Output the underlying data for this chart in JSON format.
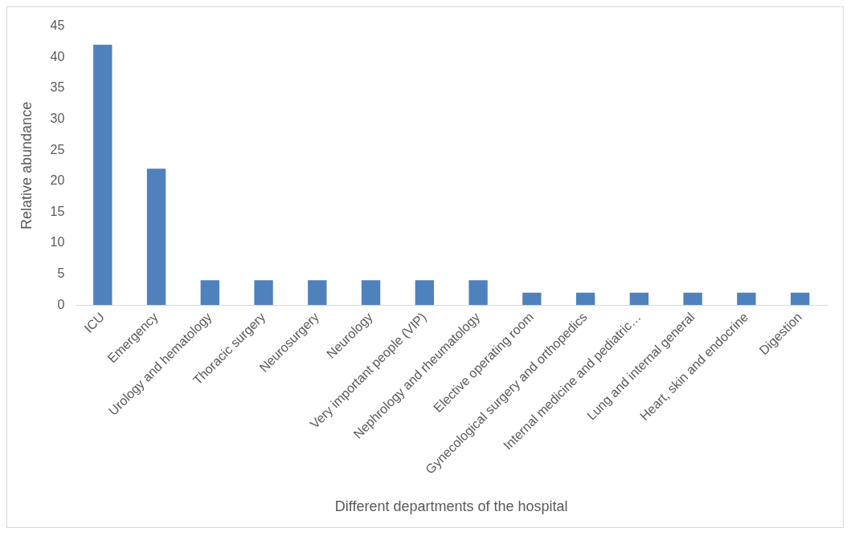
{
  "chart_data": {
    "type": "bar",
    "xlabel": "Different departments of the hospital",
    "ylabel": "Relative abundance",
    "categories": [
      "ICU",
      "Emergency",
      "Urology and hematology",
      "Thoracic surgery",
      "Neurosurgery",
      "Neurology",
      "Very important people (VIP)",
      "Nephrology and rheumatology",
      "Elective operating room",
      "Gynecological surgery and orthopedics",
      "Internal medicine and pediatric…",
      "Lung and internal general",
      "Heart, skin and endocrine",
      "Digestion"
    ],
    "values": [
      42,
      22,
      4,
      4,
      4,
      4,
      4,
      4,
      2,
      2,
      2,
      2,
      2,
      2
    ],
    "color": "#4f81bd",
    "ylim": [
      0,
      45
    ],
    "yticks": [
      0,
      5,
      10,
      15,
      20,
      25,
      30,
      35,
      40,
      45
    ],
    "grid": false,
    "legend": false
  }
}
